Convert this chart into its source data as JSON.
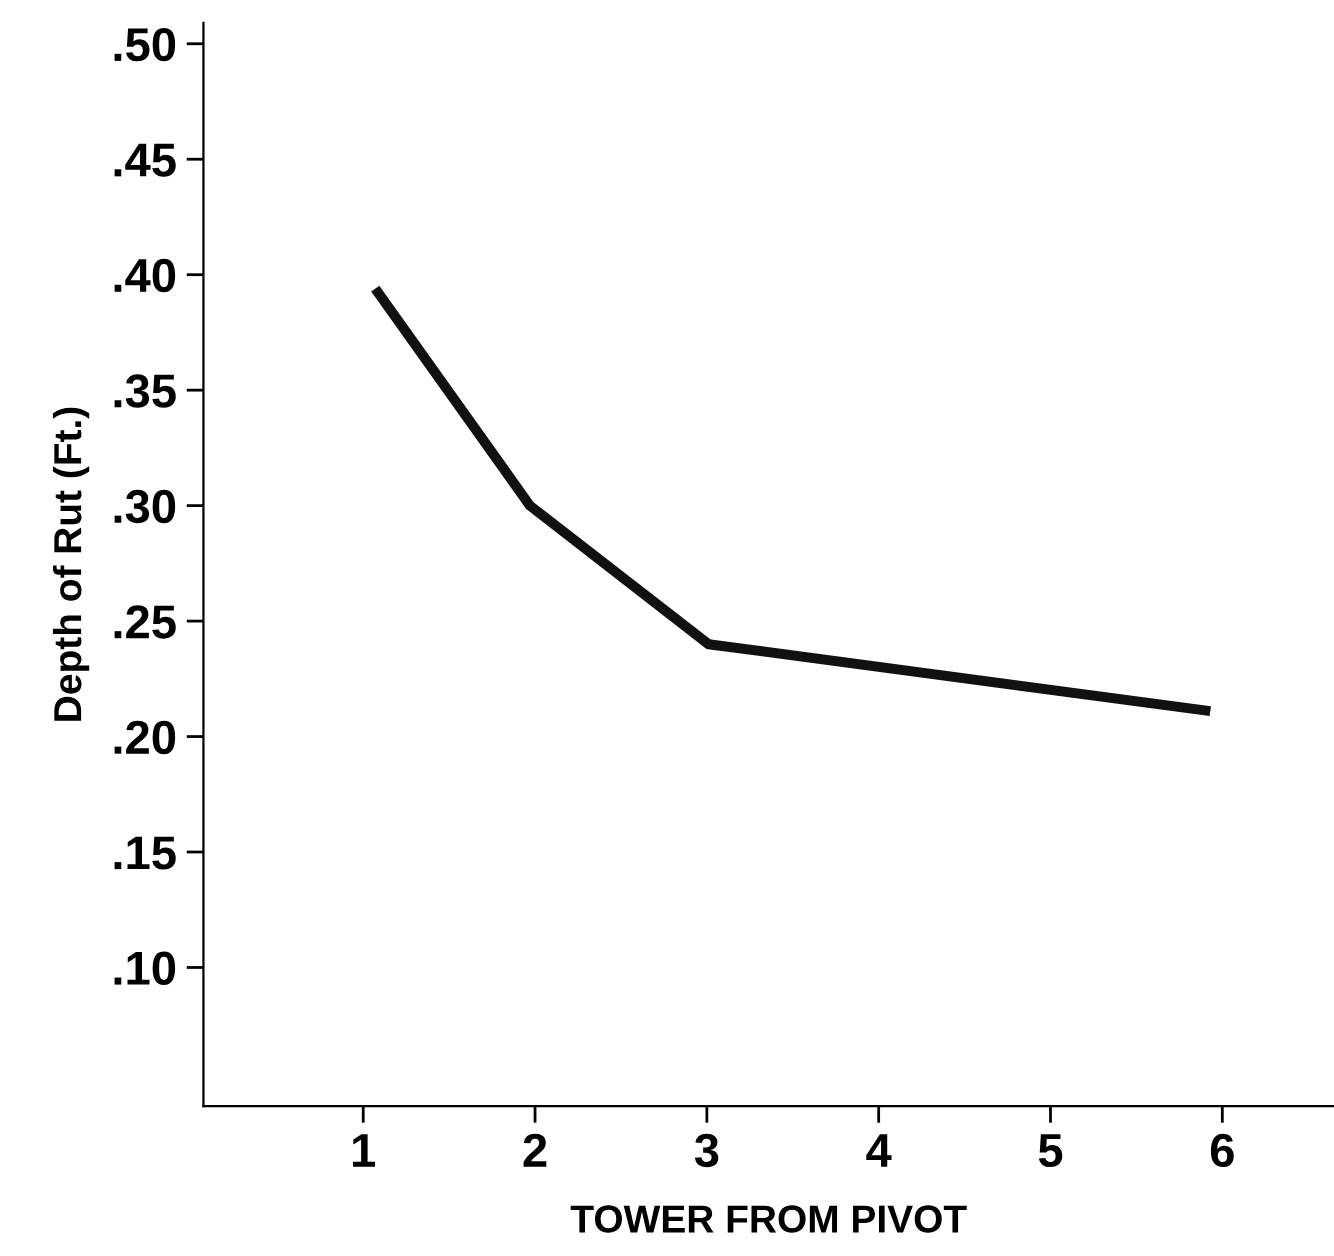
{
  "chart_data": {
    "type": "line",
    "xlabel": "TOWER FROM PIVOT",
    "ylabel": "Depth of Rut (Ft.)",
    "x": [
      1.07,
      1.97,
      3.01,
      5.93
    ],
    "series": [
      {
        "color": "#111111",
        "values": [
          0.394,
          0.3,
          0.24,
          0.211
        ]
      }
    ],
    "xlim": [
      0.07,
      6.65
    ],
    "xticks": [
      1,
      2,
      3,
      4,
      5,
      6
    ],
    "ylim": [
      0.04,
      0.509
    ],
    "yticks": [
      {
        "value": 0.1,
        "label": ".10"
      },
      {
        "value": 0.15,
        "label": ".15"
      },
      {
        "value": 0.2,
        "label": ".20"
      },
      {
        "value": 0.25,
        "label": ".25"
      },
      {
        "value": 0.3,
        "label": ".30"
      },
      {
        "value": 0.35,
        "label": ".35"
      },
      {
        "value": 0.4,
        "label": ".40"
      },
      {
        "value": 0.45,
        "label": ".45"
      },
      {
        "value": 0.5,
        "label": ".50"
      }
    ],
    "grid": false,
    "marker": "none",
    "line_style": "solid"
  }
}
